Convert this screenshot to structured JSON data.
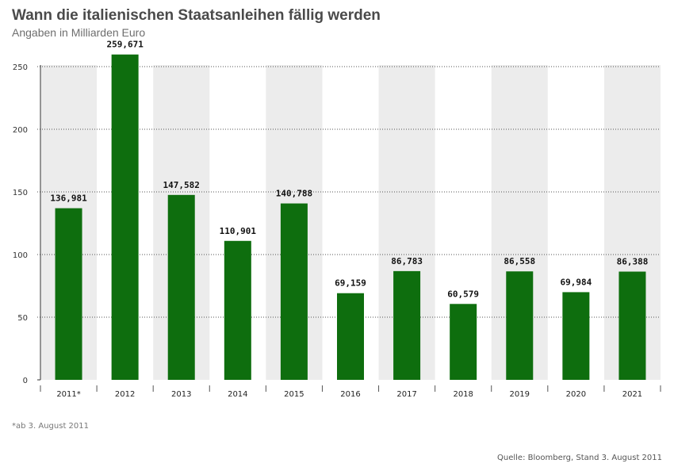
{
  "header": {
    "title": "Wann die italienischen Staatsanleihen fällig werden",
    "subtitle": "Angaben in Milliarden Euro"
  },
  "footer": {
    "footnote": "*ab 3. August 2011",
    "source": "Quelle: Bloomberg, Stand 3. August 2011"
  },
  "colors": {
    "bar": "#0e6e0e",
    "band": "#ececec",
    "grid": "#555555"
  },
  "chart_data": {
    "type": "bar",
    "title": "Wann die italienischen Staatsanleihen fällig werden",
    "subtitle": "Angaben in Milliarden Euro",
    "xlabel": "",
    "ylabel": "",
    "categories": [
      "2011*",
      "2012",
      "2013",
      "2014",
      "2015",
      "2016",
      "2017",
      "2018",
      "2019",
      "2020",
      "2021"
    ],
    "values": [
      136.981,
      259.671,
      147.582,
      110.901,
      140.788,
      69.159,
      86.783,
      60.579,
      86.558,
      69.984,
      86.388
    ],
    "value_labels": [
      "136,981",
      "259,671",
      "147,582",
      "110,901",
      "140,788",
      "69,159",
      "86,783",
      "60,579",
      "86,558",
      "69,984",
      "86,388"
    ],
    "ylim": [
      0,
      250
    ],
    "yticks": [
      0,
      50,
      100,
      150,
      200,
      250
    ],
    "grid": true
  }
}
